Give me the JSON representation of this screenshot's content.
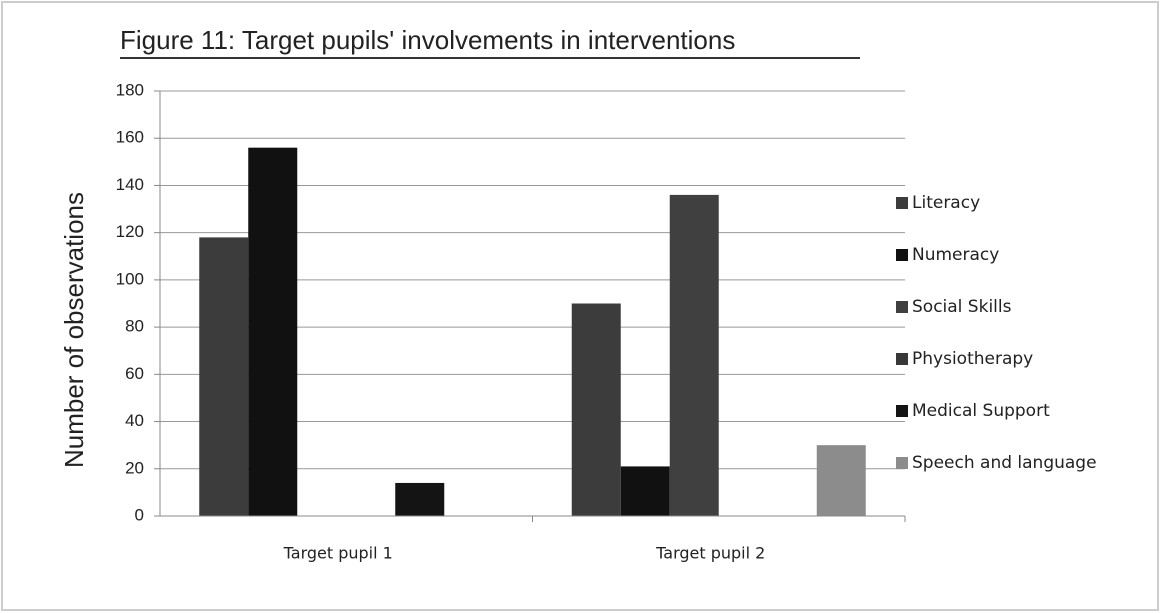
{
  "chart_data": {
    "type": "bar",
    "title": "Figure 11: Target pupils' involvements in interventions",
    "y_label": "Number of observations",
    "categories": [
      "Target pupil 1",
      "Target pupil 2"
    ],
    "series": [
      {
        "name": "Literacy",
        "color": "#3c3c3c",
        "values": [
          118,
          90
        ]
      },
      {
        "name": "Numeracy",
        "color": "#111111",
        "values": [
          156,
          21
        ]
      },
      {
        "name": "Social Skills",
        "color": "#404040",
        "values": [
          0,
          136
        ]
      },
      {
        "name": "Physiotherapy",
        "color": "#383838",
        "values": [
          0,
          0
        ]
      },
      {
        "name": "Medical Support",
        "color": "#141414",
        "values": [
          14,
          0
        ]
      },
      {
        "name": "Speech and language",
        "color": "#8c8c8c",
        "values": [
          0,
          30
        ]
      }
    ],
    "ylim": [
      0,
      180
    ],
    "yticks": [
      0,
      20,
      40,
      60,
      80,
      100,
      120,
      140,
      160,
      180
    ],
    "grid": true
  }
}
